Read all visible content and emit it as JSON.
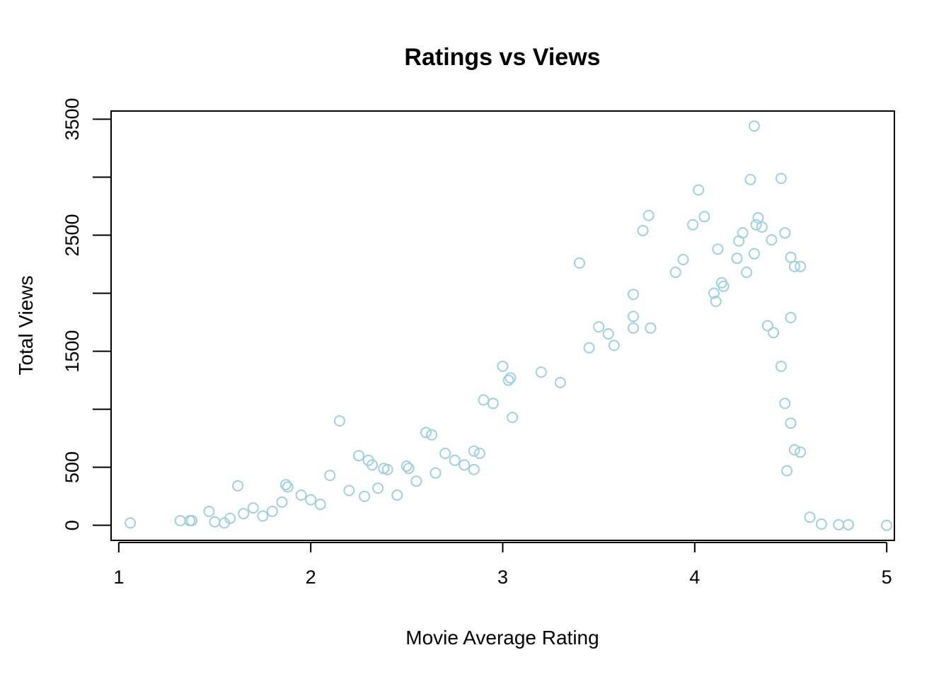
{
  "chart_data": {
    "type": "scatter",
    "title": "Ratings vs Views",
    "xlabel": "Movie Average Rating",
    "ylabel": "Total Views",
    "xlim": [
      0.96,
      5.04
    ],
    "ylim": [
      -130,
      3570
    ],
    "xticks": [
      1,
      2,
      3,
      4,
      5
    ],
    "yticks": [
      0,
      500,
      1000,
      1500,
      2000,
      2500,
      3000,
      3500
    ],
    "xtick_labels": [
      "1",
      "2",
      "3",
      "4",
      "5"
    ],
    "ytick_labels": [
      "0",
      "500",
      "",
      "1500",
      "",
      "2500",
      "",
      "3500"
    ],
    "point_color": "#a0d0e0",
    "grid": false,
    "points": [
      [
        1.06,
        20
      ],
      [
        1.32,
        40
      ],
      [
        1.37,
        40
      ],
      [
        1.38,
        40
      ],
      [
        1.47,
        120
      ],
      [
        1.62,
        340
      ],
      [
        2.1,
        430
      ],
      [
        2.15,
        900
      ],
      [
        2.25,
        600
      ],
      [
        2.3,
        560
      ],
      [
        2.32,
        520
      ],
      [
        2.38,
        490
      ],
      [
        2.4,
        480
      ],
      [
        2.5,
        510
      ],
      [
        2.51,
        490
      ],
      [
        2.6,
        800
      ],
      [
        2.63,
        780
      ],
      [
        2.85,
        640
      ],
      [
        2.9,
        1080
      ],
      [
        2.95,
        1050
      ],
      [
        3.0,
        1370
      ],
      [
        3.03,
        1250
      ],
      [
        3.04,
        1270
      ],
      [
        3.05,
        930
      ],
      [
        3.2,
        1320
      ],
      [
        3.3,
        1230
      ],
      [
        3.4,
        2260
      ],
      [
        3.45,
        1530
      ],
      [
        3.5,
        1710
      ],
      [
        3.55,
        1650
      ],
      [
        3.58,
        1550
      ],
      [
        3.68,
        1990
      ],
      [
        3.68,
        1800
      ],
      [
        3.68,
        1700
      ],
      [
        3.73,
        2540
      ],
      [
        3.76,
        2670
      ],
      [
        3.77,
        1700
      ],
      [
        3.9,
        2180
      ],
      [
        3.94,
        2290
      ],
      [
        3.99,
        2590
      ],
      [
        4.02,
        2890
      ],
      [
        4.05,
        2660
      ],
      [
        4.1,
        2000
      ],
      [
        4.11,
        1930
      ],
      [
        4.12,
        2380
      ],
      [
        4.14,
        2090
      ],
      [
        4.15,
        2060
      ],
      [
        4.22,
        2300
      ],
      [
        4.23,
        2450
      ],
      [
        4.25,
        2520
      ],
      [
        4.27,
        2180
      ],
      [
        4.29,
        2980
      ],
      [
        4.31,
        3440
      ],
      [
        4.31,
        2340
      ],
      [
        4.32,
        2590
      ],
      [
        4.33,
        2650
      ],
      [
        4.35,
        2570
      ],
      [
        4.38,
        1720
      ],
      [
        4.4,
        2460
      ],
      [
        4.41,
        1660
      ],
      [
        4.45,
        2990
      ],
      [
        4.47,
        2520
      ],
      [
        4.5,
        2310
      ],
      [
        4.52,
        2230
      ],
      [
        4.55,
        2230
      ],
      [
        4.5,
        1790
      ],
      [
        4.45,
        1370
      ],
      [
        4.47,
        1050
      ],
      [
        4.5,
        880
      ],
      [
        4.52,
        650
      ],
      [
        4.55,
        630
      ],
      [
        4.48,
        470
      ],
      [
        4.6,
        70
      ],
      [
        4.66,
        10
      ],
      [
        4.75,
        5
      ],
      [
        4.8,
        5
      ],
      [
        5.0,
        0
      ],
      [
        1.5,
        30
      ],
      [
        1.55,
        20
      ],
      [
        1.58,
        60
      ],
      [
        1.65,
        100
      ],
      [
        1.7,
        150
      ],
      [
        1.75,
        80
      ],
      [
        1.8,
        120
      ],
      [
        1.85,
        200
      ],
      [
        1.87,
        350
      ],
      [
        1.88,
        330
      ],
      [
        1.95,
        260
      ],
      [
        2.0,
        220
      ],
      [
        2.05,
        180
      ],
      [
        2.2,
        300
      ],
      [
        2.28,
        250
      ],
      [
        2.35,
        320
      ],
      [
        2.45,
        260
      ],
      [
        2.55,
        380
      ],
      [
        2.65,
        450
      ],
      [
        2.7,
        620
      ],
      [
        2.75,
        560
      ],
      [
        2.8,
        520
      ],
      [
        2.85,
        480
      ],
      [
        2.88,
        620
      ]
    ]
  }
}
